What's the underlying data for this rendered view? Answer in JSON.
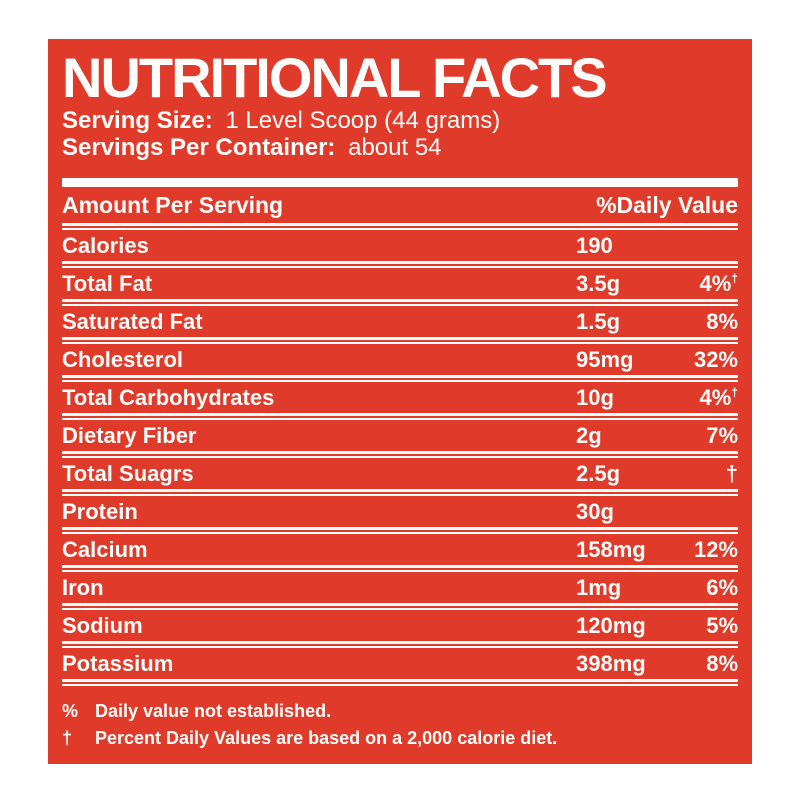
{
  "header": {
    "title": "NUTRITIONAL FACTS",
    "serving_size_label": "Serving Size:",
    "serving_size_value": "1 Level Scoop (44 grams)",
    "servings_per_container_label": "Servings Per Container:",
    "servings_per_container_value": "about 54"
  },
  "table": {
    "col_amount_header": "Amount Per Serving",
    "col_dv_header": "%Daily Value",
    "rows": [
      {
        "label": "Calories",
        "amount": "190",
        "dv": "",
        "sup": ""
      },
      {
        "label": "Total Fat",
        "amount": "3.5g",
        "dv": "4%",
        "sup": "†"
      },
      {
        "label": "Saturated Fat",
        "amount": "1.5g",
        "dv": "8%",
        "sup": ""
      },
      {
        "label": "Cholesterol",
        "amount": "95mg",
        "dv": "32%",
        "sup": ""
      },
      {
        "label": "Total Carbohydrates",
        "amount": "10g",
        "dv": "4%",
        "sup": "†"
      },
      {
        "label": "Dietary Fiber",
        "amount": "2g",
        "dv": "7%",
        "sup": ""
      },
      {
        "label": "Total Suagrs",
        "amount": "2.5g",
        "dv": "†",
        "sup": ""
      },
      {
        "label": "Protein",
        "amount": "30g",
        "dv": "",
        "sup": ""
      },
      {
        "label": "Calcium",
        "amount": "158mg",
        "dv": "12%",
        "sup": ""
      },
      {
        "label": "Iron",
        "amount": "1mg",
        "dv": "6%",
        "sup": ""
      },
      {
        "label": "Sodium",
        "amount": "120mg",
        "dv": "5%",
        "sup": ""
      },
      {
        "label": "Potassium",
        "amount": "398mg",
        "dv": "8%",
        "sup": ""
      }
    ]
  },
  "footnotes": [
    {
      "symbol": "%",
      "text": "Daily value not established."
    },
    {
      "symbol": "†",
      "text": "Percent Daily Values are based on a 2,000 calorie diet."
    }
  ],
  "colors": {
    "label_background": "#e03a2a",
    "text": "#fffdfb"
  }
}
